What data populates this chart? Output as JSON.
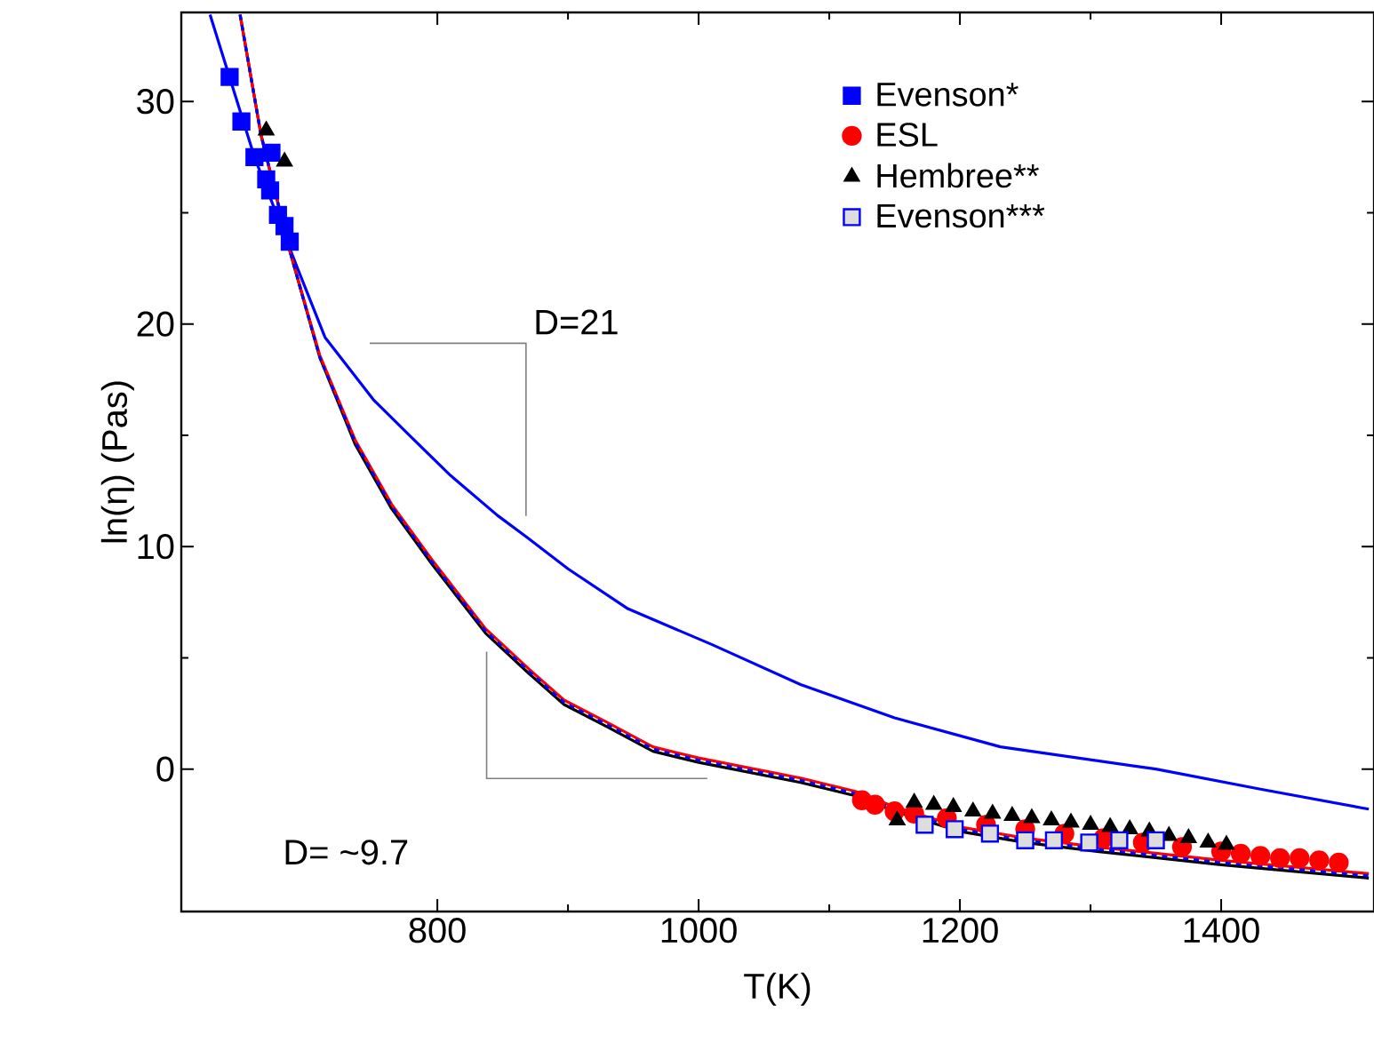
{
  "chart_data": {
    "type": "scatter",
    "xlabel": "T(K)",
    "ylabel": "ln(η) (Pas)",
    "xlim": [
      604,
      1517
    ],
    "ylim": [
      -6.4,
      34
    ],
    "xticks": [
      800,
      1000,
      1200,
      1400
    ],
    "yticks": [
      0,
      10,
      20,
      30
    ],
    "legend": "top right",
    "grid": false,
    "annotations": [
      "D=21",
      "D= ~9.7"
    ],
    "series": [
      {
        "name": "Evenson*",
        "marker": "square",
        "color": "#0000ff",
        "x": [
          641,
          650,
          660,
          673,
          669,
          672,
          678,
          683,
          687
        ],
        "values": [
          31.1,
          29.1,
          27.5,
          27.7,
          26.5,
          26.0,
          24.9,
          24.4,
          23.7
        ]
      },
      {
        "name": "ESL",
        "marker": "circle",
        "color": "#ff0000",
        "x": [
          1125,
          1135,
          1150,
          1165,
          1190,
          1220,
          1250,
          1280,
          1310,
          1340,
          1370,
          1400,
          1415,
          1430,
          1445,
          1460,
          1475,
          1490
        ],
        "values": [
          -1.4,
          -1.6,
          -1.9,
          -2.0,
          -2.2,
          -2.5,
          -2.7,
          -2.9,
          -3.1,
          -3.3,
          -3.5,
          -3.7,
          -3.8,
          -3.9,
          -4.0,
          -4.0,
          -4.1,
          -4.2
        ]
      },
      {
        "name": "Hembree**",
        "marker": "triangle",
        "color": "#000000",
        "x": [
          669,
          683,
          1152,
          1165,
          1180,
          1195,
          1210,
          1225,
          1240,
          1255,
          1270,
          1285,
          1300,
          1315,
          1330,
          1345,
          1360,
          1375,
          1390,
          1404
        ],
        "values": [
          28.7,
          27.3,
          -2.3,
          -1.5,
          -1.6,
          -1.7,
          -1.9,
          -2.0,
          -2.1,
          -2.2,
          -2.3,
          -2.4,
          -2.5,
          -2.6,
          -2.7,
          -2.8,
          -3.0,
          -3.1,
          -3.3,
          -3.4
        ]
      },
      {
        "name": "Evenson***",
        "marker": "square",
        "color": "#0000ff",
        "x": [
          1173,
          1196,
          1223,
          1250,
          1272,
          1299,
          1322,
          1350
        ],
        "values": [
          -2.5,
          -2.7,
          -2.9,
          -3.2,
          -3.2,
          -3.3,
          -3.2,
          -3.2
        ]
      },
      {
        "type": "line",
        "marker": "none",
        "color": "#0000ff",
        "x": [
          626,
          660,
          693,
          714,
          751,
          782,
          810,
          846,
          869,
          900,
          946,
          1010,
          1078,
          1150,
          1231,
          1350,
          1430,
          1513
        ],
        "values": [
          33.9,
          27.5,
          22.5,
          19.4,
          16.6,
          14.8,
          13.2,
          11.4,
          10.4,
          9.0,
          7.2,
          5.6,
          3.8,
          2.3,
          1.0,
          0.0,
          -0.9,
          -1.8
        ]
      },
      {
        "type": "line",
        "marker": "none",
        "color": "#000000",
        "x": [
          649,
          665,
          687,
          710,
          737,
          765,
          796,
          837,
          870,
          897,
          930,
          965,
          1000,
          1078,
          1120,
          1150,
          1200,
          1250,
          1305,
          1400,
          1513
        ],
        "values": [
          33.9,
          28.5,
          23.3,
          18.5,
          14.6,
          11.7,
          9.2,
          6.1,
          4.3,
          2.9,
          1.9,
          0.8,
          0.3,
          -0.6,
          -1.2,
          -1.9,
          -2.8,
          -3.3,
          -3.7,
          -4.3,
          -4.9
        ]
      },
      {
        "type": "line",
        "marker": "none",
        "color": "#ff0000",
        "x": [
          649,
          665,
          687,
          710,
          737,
          765,
          796,
          837,
          870,
          897,
          930,
          965,
          1000,
          1078,
          1120,
          1150,
          1200,
          1250,
          1305,
          1400,
          1513
        ],
        "values": [
          33.9,
          28.5,
          23.3,
          18.6,
          14.8,
          11.9,
          9.4,
          6.3,
          4.5,
          3.1,
          2.1,
          1.0,
          0.5,
          -0.4,
          -1.0,
          -1.7,
          -2.6,
          -3.1,
          -3.5,
          -4.1,
          -4.7
        ]
      },
      {
        "type": "line",
        "marker": "none",
        "line_style": "dashed",
        "color": "#0000ff",
        "x": [
          649,
          665,
          687,
          710,
          737,
          765,
          796,
          837,
          870,
          897,
          930,
          965,
          1000,
          1078,
          1120,
          1150,
          1200,
          1250,
          1305,
          1400,
          1513
        ],
        "values": [
          33.9,
          28.5,
          23.3,
          18.5,
          14.7,
          11.8,
          9.3,
          6.2,
          4.4,
          3.0,
          2.0,
          0.9,
          0.4,
          -0.5,
          -1.1,
          -1.8,
          -2.7,
          -3.2,
          -3.6,
          -4.2,
          -4.8
        ]
      }
    ]
  }
}
